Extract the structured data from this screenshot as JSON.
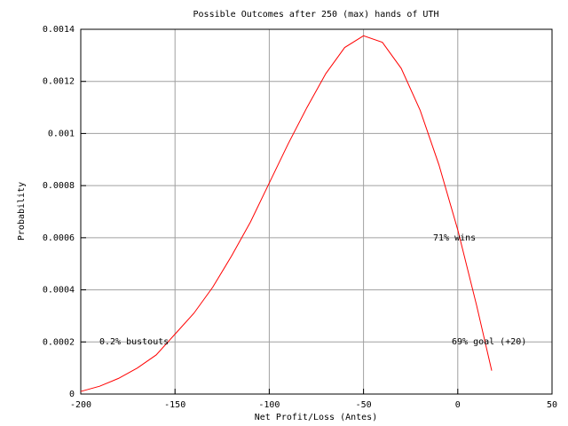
{
  "chart_data": {
    "type": "line",
    "title": "Possible Outcomes after 250 (max) hands of UTH",
    "x_label": "Net Profit/Loss (Antes)",
    "y_label": "Probability",
    "x": [
      -200,
      -190,
      -180,
      -170,
      -160,
      -150,
      -140,
      -130,
      -120,
      -110,
      -100,
      -90,
      -80,
      -70,
      -60,
      -50,
      -40,
      -30,
      -20,
      -10,
      0,
      10,
      18
    ],
    "series": [
      {
        "color": "#ff0000",
        "values": [
          1e-05,
          3e-05,
          6e-05,
          0.0001,
          0.00015,
          0.00023,
          0.00031,
          0.00041,
          0.00053,
          0.00066,
          0.00081,
          0.00096,
          0.0011,
          0.00123,
          0.00133,
          0.001375,
          0.00135,
          0.00125,
          0.00109,
          0.00088,
          0.00063,
          0.00034,
          9e-05
        ]
      }
    ],
    "annotations": [
      "71% wins",
      "0.2% bustouts",
      "69% goal (+20)"
    ],
    "xlim": [
      -200,
      50
    ],
    "xticks": [
      -200,
      -150,
      -100,
      -50,
      0,
      50
    ],
    "ylim": [
      0,
      0.0014
    ],
    "yticks": [
      0,
      0.0002,
      0.0004,
      0.0006,
      0.0008,
      0.001,
      0.0012,
      0.0014
    ],
    "grid": true
  }
}
